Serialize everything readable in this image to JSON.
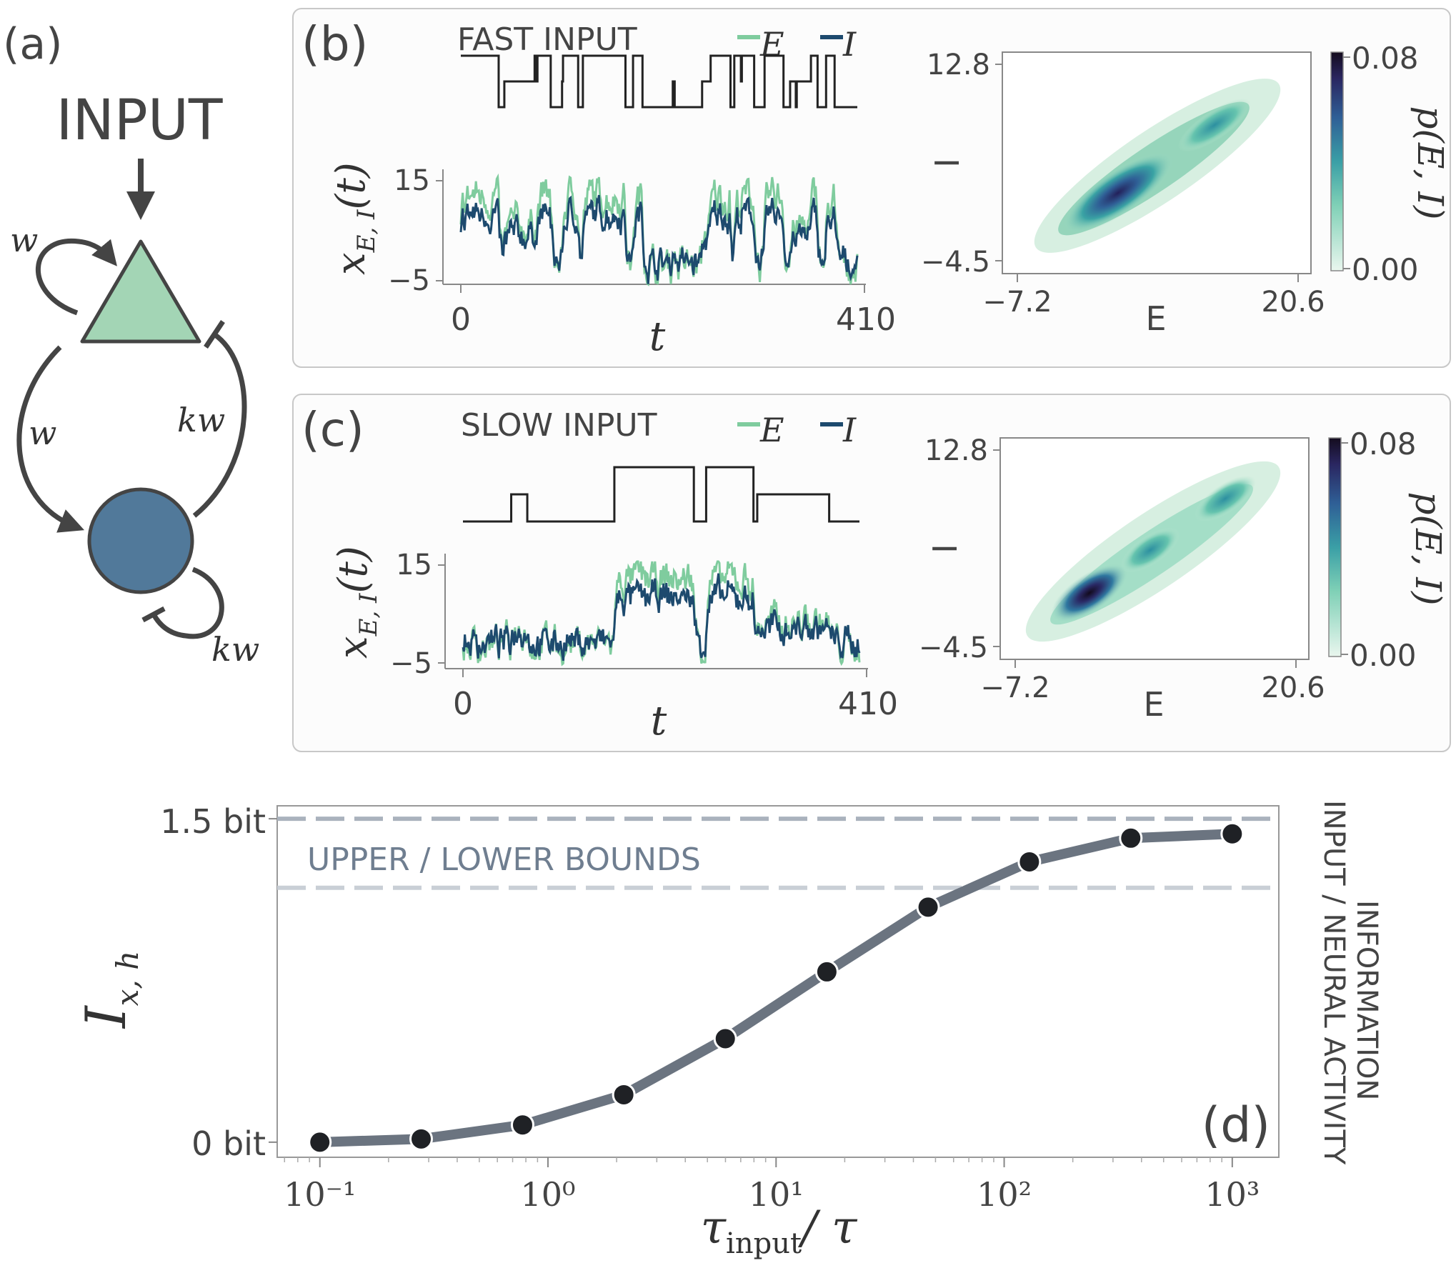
{
  "panel_a": {
    "label": "(a)",
    "input_label": "INPUT",
    "w_self": "w",
    "w_ei": "w",
    "kw_ie": "kw",
    "kw_self": "kw",
    "colors": {
      "excitatory": "#a3d5b5",
      "inhibitory": "#51799a",
      "stroke": "#444444"
    }
  },
  "panel_b": {
    "label": "(b)",
    "title": "FAST INPUT",
    "legend": {
      "E": "E",
      "I": "I"
    },
    "ylabel": "x_{E,I}(t)",
    "ylabel_main": "x",
    "ylabel_sub": "E, I",
    "ylabel_arg": "(t)",
    "xlabel": "t",
    "yticks": [
      "15",
      "−5"
    ],
    "xticks": [
      "0",
      "410"
    ],
    "heatmap": {
      "xlabel": "E",
      "ylabel": "I",
      "xticks": [
        "−7.2",
        "20.6"
      ],
      "yticks": [
        "12.8",
        "−4.5"
      ],
      "cbar_label": "p(E, I)",
      "cbar_ticks": [
        "0.08",
        "0.00"
      ]
    }
  },
  "panel_c": {
    "label": "(c)",
    "title": "SLOW INPUT",
    "legend": {
      "E": "E",
      "I": "I"
    },
    "ylabel": "x_{E,I}(t)",
    "ylabel_main": "x",
    "ylabel_sub": "E, I",
    "ylabel_arg": "(t)",
    "xlabel": "t",
    "yticks": [
      "15",
      "−5"
    ],
    "xticks": [
      "0",
      "410"
    ],
    "heatmap": {
      "xlabel": "E",
      "ylabel": "I",
      "xticks": [
        "−7.2",
        "20.6"
      ],
      "yticks": [
        "12.8",
        "−4.5"
      ],
      "cbar_label": "p(E, I)",
      "cbar_ticks": [
        "0.08",
        "0.00"
      ]
    }
  },
  "panel_d": {
    "label": "(d)",
    "ylabel": "I_{x,h}",
    "ylabel_main": "I",
    "ylabel_sub": "x, h",
    "xlabel": "τ_input / τ",
    "xlabel_tau": "τ",
    "xlabel_sub": "input",
    "xlabel_tail": "/ τ",
    "bounds_label": "UPPER / LOWER BOUNDS",
    "side_label_line1": "INFORMATION",
    "side_label_line2": "INPUT / NEURAL ACTIVITY",
    "yticks": [
      "1.5 bit",
      "0 bit"
    ]
  },
  "colors": {
    "E": "#7fcc9e",
    "I": "#1d4a6e",
    "input_trace": "#222222",
    "curve": "#6b7480",
    "marker": "#1f2125",
    "bounds": "#aab2bd",
    "bounds_text": "#6f7e90"
  },
  "chart_data": [
    {
      "type": "line",
      "panel": "b",
      "title": "FAST INPUT",
      "xlabel": "t",
      "ylabel": "x_{E,I}(t)",
      "xlim": [
        0,
        410
      ],
      "ylim": [
        -5,
        15
      ],
      "series": [
        {
          "name": "E",
          "color": "#7fcc9e",
          "mean_level": 5,
          "range": [
            -5,
            15
          ]
        },
        {
          "name": "I",
          "color": "#1d4a6e",
          "mean_level": 4,
          "range": [
            -3,
            10
          ]
        }
      ],
      "input_switching": "fast"
    },
    {
      "type": "heatmap",
      "panel": "b",
      "xlabel": "E",
      "ylabel": "I",
      "xlim": [
        -7.2,
        20.6
      ],
      "ylim": [
        -4.5,
        12.8
      ],
      "colorbar_range": [
        0.0,
        0.08
      ],
      "colorbar_label": "p(E, I)"
    },
    {
      "type": "line",
      "panel": "c",
      "title": "SLOW INPUT",
      "xlabel": "t",
      "ylabel": "x_{E,I}(t)",
      "xlim": [
        0,
        410
      ],
      "ylim": [
        -5,
        15
      ],
      "series": [
        {
          "name": "E",
          "color": "#7fcc9e"
        },
        {
          "name": "I",
          "color": "#1d4a6e"
        }
      ],
      "input_switching": "slow"
    },
    {
      "type": "heatmap",
      "panel": "c",
      "xlabel": "E",
      "ylabel": "I",
      "xlim": [
        -7.2,
        20.6
      ],
      "ylim": [
        -4.5,
        12.8
      ],
      "colorbar_range": [
        0.0,
        0.08
      ],
      "colorbar_label": "p(E, I)"
    },
    {
      "type": "line",
      "panel": "d",
      "xlabel": "τ_input / τ",
      "ylabel": "I_{x,h}",
      "xscale": "log",
      "xlim": [
        0.065,
        1600
      ],
      "ylim": [
        -0.07,
        1.56
      ],
      "yunit": "bit",
      "x": [
        0.1,
        0.278,
        0.774,
        2.15,
        5.99,
        16.7,
        46.4,
        129,
        359,
        1000
      ],
      "values": [
        0.0,
        0.015,
        0.08,
        0.22,
        0.48,
        0.79,
        1.09,
        1.3,
        1.41,
        1.43
      ],
      "bounds": {
        "upper": 1.5,
        "lower": 1.18,
        "label": "UPPER / LOWER BOUNDS"
      },
      "x_tick_labels": [
        "10⁻¹",
        "10⁰",
        "10¹",
        "10²",
        "10³"
      ],
      "x_tick_values": [
        0.1,
        1,
        10,
        100,
        1000
      ],
      "y_tick_labels": [
        "1.5 bit",
        "0 bit"
      ],
      "y_tick_values": [
        1.5,
        0
      ]
    }
  ]
}
